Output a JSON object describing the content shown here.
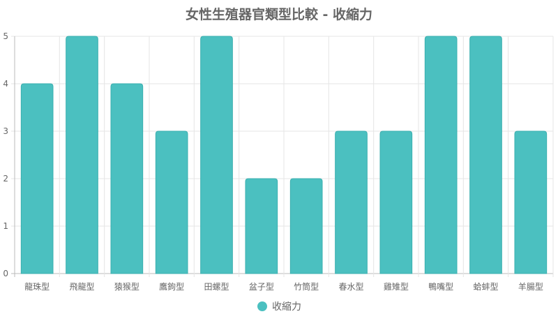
{
  "chart_data": {
    "type": "bar",
    "title": "女性生殖器官類型比較 - 收縮力",
    "categories": [
      "龍珠型",
      "飛龍型",
      "猿猴型",
      "鷹鉤型",
      "田螺型",
      "盆子型",
      "竹筒型",
      "春水型",
      "雞雉型",
      "鴨嘴型",
      "蛤蚌型",
      "羊腸型"
    ],
    "series": [
      {
        "name": "收縮力",
        "values": [
          4,
          5,
          4,
          3,
          5,
          2,
          2,
          3,
          3,
          5,
          5,
          3
        ]
      }
    ],
    "ylim": [
      0,
      5
    ],
    "yticks": [
      "0",
      "1",
      "2",
      "3",
      "4",
      "5"
    ],
    "grid": true,
    "legend_position": "bottom",
    "colors": {
      "bar_fill": "#4bc0c0",
      "bar_stroke": "#3aafaf",
      "grid": "#e5e5e5",
      "axis": "#bbbbbb"
    }
  }
}
